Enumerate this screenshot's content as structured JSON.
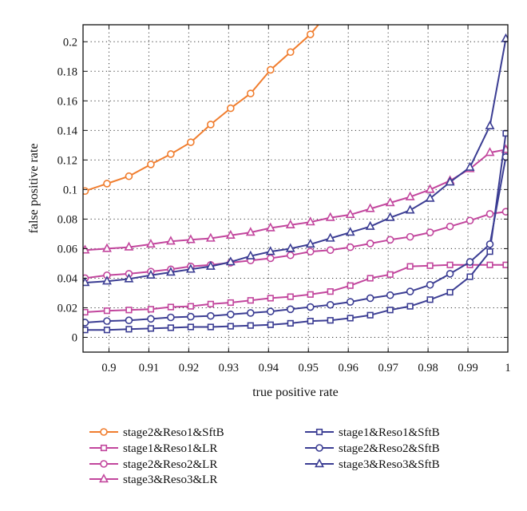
{
  "colors": {
    "orange": "#f07d2e",
    "magenta": "#c2469d",
    "navy": "#3b3d93",
    "grid": "#333333",
    "axis": "#111111"
  },
  "chart_data": {
    "type": "line",
    "title": "",
    "xlabel": "true positive rate",
    "ylabel": "false positive rate",
    "xlim": [
      0.8935,
      1.0
    ],
    "ylim": [
      -0.01,
      0.2115
    ],
    "grid": true,
    "grid_style": "dotted",
    "x_ticks": [
      0.9,
      0.91,
      0.92,
      0.93,
      0.94,
      0.95,
      0.96,
      0.97,
      0.98,
      0.99,
      1.0
    ],
    "x_tick_labels": [
      "0.9",
      "0.91",
      "0.92",
      "0.93",
      "0.94",
      "0.95",
      "0.96",
      "0.97",
      "0.98",
      "0.99",
      "1"
    ],
    "y_ticks": [
      0,
      0.02,
      0.04,
      0.06,
      0.08,
      0.1,
      0.12,
      0.14,
      0.16,
      0.18,
      0.2
    ],
    "y_tick_labels": [
      "0",
      "0.02",
      "0.04",
      "0.06",
      "0.08",
      "0.1",
      "0.12",
      "0.14",
      "0.16",
      "0.18",
      "0.2"
    ],
    "legend_position": "bottom",
    "series": [
      {
        "name": "stage2&Reso1&SftB",
        "color": "orange",
        "marker": "circle",
        "x": [
          0.894,
          0.8995,
          0.905,
          0.9105,
          0.9155,
          0.9205,
          0.9255,
          0.9305,
          0.9355,
          0.9405,
          0.9455,
          0.9505,
          0.9525
        ],
        "y": [
          0.099,
          0.104,
          0.109,
          0.117,
          0.124,
          0.132,
          0.144,
          0.155,
          0.165,
          0.181,
          0.193,
          0.205,
          0.2115
        ]
      },
      {
        "name": "stage1&Reso1&LR",
        "color": "magenta",
        "marker": "square",
        "x": [
          0.894,
          0.8995,
          0.905,
          0.9105,
          0.9155,
          0.9205,
          0.9255,
          0.9305,
          0.9355,
          0.9405,
          0.9455,
          0.9505,
          0.9555,
          0.9605,
          0.9655,
          0.9705,
          0.9755,
          0.9805,
          0.9855,
          0.9905,
          0.9955,
          0.9995
        ],
        "y": [
          0.017,
          0.018,
          0.0185,
          0.019,
          0.0205,
          0.021,
          0.0225,
          0.0235,
          0.025,
          0.0265,
          0.0275,
          0.029,
          0.031,
          0.035,
          0.04,
          0.0425,
          0.048,
          0.0485,
          0.049,
          0.049,
          0.049,
          0.049
        ]
      },
      {
        "name": "stage2&Reso2&LR",
        "color": "magenta",
        "marker": "circle",
        "x": [
          0.894,
          0.8995,
          0.905,
          0.9105,
          0.9155,
          0.9205,
          0.9255,
          0.9305,
          0.9355,
          0.9405,
          0.9455,
          0.9505,
          0.9555,
          0.9605,
          0.9655,
          0.9705,
          0.9755,
          0.9805,
          0.9855,
          0.9905,
          0.9955,
          0.9995
        ],
        "y": [
          0.04,
          0.042,
          0.043,
          0.0445,
          0.046,
          0.048,
          0.049,
          0.0505,
          0.052,
          0.0535,
          0.0555,
          0.058,
          0.059,
          0.061,
          0.0635,
          0.066,
          0.068,
          0.071,
          0.075,
          0.079,
          0.0835,
          0.085
        ]
      },
      {
        "name": "stage3&Reso3&LR",
        "color": "magenta",
        "marker": "triangle",
        "x": [
          0.894,
          0.8995,
          0.905,
          0.9105,
          0.9155,
          0.9205,
          0.9255,
          0.9305,
          0.9355,
          0.9405,
          0.9455,
          0.9505,
          0.9555,
          0.9605,
          0.9655,
          0.9705,
          0.9755,
          0.9805,
          0.9855,
          0.9905,
          0.9955,
          0.9995
        ],
        "y": [
          0.059,
          0.06,
          0.061,
          0.063,
          0.065,
          0.066,
          0.067,
          0.069,
          0.071,
          0.074,
          0.076,
          0.078,
          0.081,
          0.083,
          0.087,
          0.091,
          0.095,
          0.1,
          0.106,
          0.114,
          0.125,
          0.127
        ]
      },
      {
        "name": "stage1&Reso1&SftB",
        "color": "navy",
        "marker": "square",
        "x": [
          0.894,
          0.8995,
          0.905,
          0.9105,
          0.9155,
          0.9205,
          0.9255,
          0.9305,
          0.9355,
          0.9405,
          0.9455,
          0.9505,
          0.9555,
          0.9605,
          0.9655,
          0.9705,
          0.9755,
          0.9805,
          0.9855,
          0.9905,
          0.9955,
          0.9995
        ],
        "y": [
          0.005,
          0.005,
          0.0055,
          0.006,
          0.0065,
          0.007,
          0.007,
          0.0075,
          0.008,
          0.0085,
          0.0095,
          0.011,
          0.0115,
          0.013,
          0.015,
          0.0185,
          0.021,
          0.0255,
          0.0305,
          0.041,
          0.058,
          0.138
        ]
      },
      {
        "name": "stage2&Reso2&SftB",
        "color": "navy",
        "marker": "circle",
        "x": [
          0.894,
          0.8995,
          0.905,
          0.9105,
          0.9155,
          0.9205,
          0.9255,
          0.9305,
          0.9355,
          0.9405,
          0.9455,
          0.9505,
          0.9555,
          0.9605,
          0.9655,
          0.9705,
          0.9755,
          0.9805,
          0.9855,
          0.9905,
          0.9955,
          0.9995
        ],
        "y": [
          0.01,
          0.011,
          0.0115,
          0.0125,
          0.0135,
          0.014,
          0.0145,
          0.0155,
          0.0165,
          0.0175,
          0.019,
          0.0205,
          0.022,
          0.024,
          0.0265,
          0.0285,
          0.031,
          0.0355,
          0.043,
          0.051,
          0.063,
          0.122
        ]
      },
      {
        "name": "stage3&Reso3&SftB",
        "color": "navy",
        "marker": "triangle",
        "x": [
          0.894,
          0.8995,
          0.905,
          0.9105,
          0.9155,
          0.9205,
          0.9255,
          0.9305,
          0.9355,
          0.9405,
          0.9455,
          0.9505,
          0.9555,
          0.9605,
          0.9655,
          0.9705,
          0.9755,
          0.9805,
          0.9855,
          0.9905,
          0.9955,
          0.9995
        ],
        "y": [
          0.037,
          0.038,
          0.0395,
          0.042,
          0.044,
          0.046,
          0.048,
          0.051,
          0.055,
          0.058,
          0.06,
          0.063,
          0.067,
          0.071,
          0.075,
          0.081,
          0.086,
          0.094,
          0.105,
          0.115,
          0.143,
          0.202
        ]
      }
    ]
  }
}
